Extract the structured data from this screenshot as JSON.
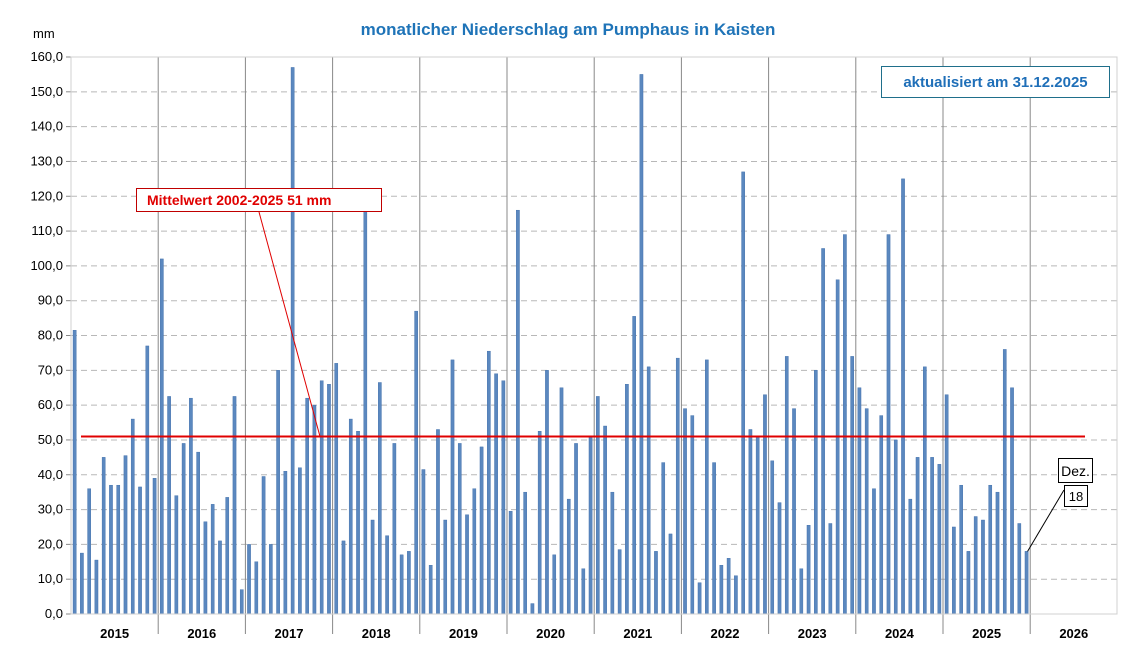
{
  "chart_data": {
    "type": "bar",
    "title": "monatlicher Niederschlag am Pumphaus in Kaisten",
    "y_unit": "mm",
    "ylim": [
      0,
      160
    ],
    "y_ticks": [
      "0,0",
      "10,0",
      "20,0",
      "30,0",
      "40,0",
      "50,0",
      "60,0",
      "70,0",
      "80,0",
      "90,0",
      "100,0",
      "110,0",
      "120,0",
      "130,0",
      "140,0",
      "150,0",
      "160,0"
    ],
    "grid": true,
    "years": [
      "2015",
      "2016",
      "2017",
      "2018",
      "2019",
      "2020",
      "2021",
      "2022",
      "2023",
      "2024",
      "2025",
      "2026"
    ],
    "series": [
      {
        "values": [
          81.5,
          17.5,
          36,
          15.5,
          45,
          37,
          37,
          45.5,
          56,
          36.5,
          77,
          39,
          102,
          62.5,
          34,
          49,
          62,
          46.5,
          26.5,
          31.5,
          21,
          33.5,
          62.5,
          7,
          20,
          15,
          39.5,
          20,
          70,
          41,
          157,
          42,
          62,
          60,
          67,
          66,
          72,
          21,
          56,
          52.5,
          116,
          27,
          66.5,
          22.5,
          49,
          17,
          18,
          87,
          41.5,
          14,
          53,
          27,
          73,
          49,
          28.5,
          36,
          48,
          75.5,
          69,
          67,
          29.5,
          116,
          35,
          3,
          52.5,
          70,
          17,
          65,
          33,
          49,
          13,
          51,
          62.5,
          54,
          35,
          18.5,
          66,
          85.5,
          155,
          71,
          18,
          43.5,
          23,
          73.5,
          59,
          57,
          9,
          73,
          43.5,
          14,
          16,
          11,
          127,
          53,
          51,
          63,
          44,
          32,
          74,
          59,
          13,
          25.5,
          70,
          105,
          26,
          96,
          109,
          74,
          65,
          59,
          36,
          57,
          109,
          50,
          125,
          33,
          45,
          71,
          45,
          43,
          63,
          25,
          37,
          18,
          28,
          27,
          37,
          35,
          76,
          65,
          26,
          18
        ]
      }
    ],
    "mean_line": {
      "value": 51,
      "label": "Mittelwert 2002-2025  51 mm"
    },
    "annotations": {
      "updated": "aktualisiert am 31.12.2025",
      "last_month": "Dez.",
      "last_value": "18"
    },
    "colors": {
      "bar": "#5b88bf",
      "bar_edge": "#3a6aa8",
      "mean": "#e00000",
      "title": "#1f74b8"
    }
  }
}
